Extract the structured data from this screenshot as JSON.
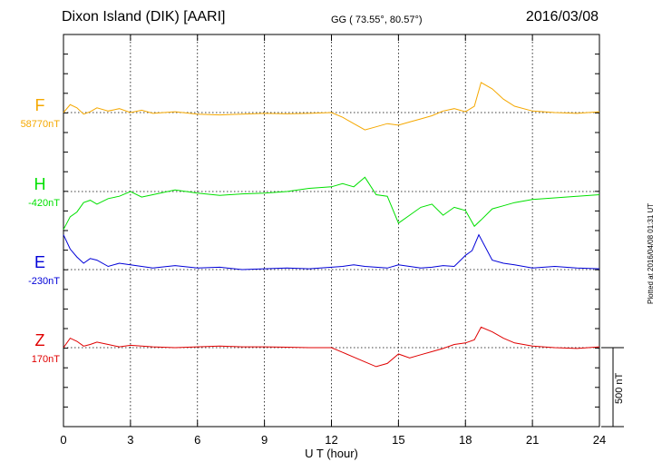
{
  "header": {
    "title": "Dixon Island (DIK)  [AARI]",
    "coords": "GG ( 73.55°,  80.57°)",
    "date": "2016/03/08"
  },
  "plotted_note": "Plotted at 2016/04/08 01:31  UT",
  "scale_label": "500 nT",
  "colors": {
    "F": "#f5a800",
    "H": "#00e000",
    "E": "#0000d8",
    "Z": "#e00000"
  },
  "chart_data": {
    "type": "line",
    "title": "Dixon Island (DIK)  [AARI]",
    "xlabel": "U T (hour)",
    "ylabel": "",
    "xlim": [
      0,
      24
    ],
    "x_ticks": [
      "0",
      "3",
      "6",
      "9",
      "12",
      "15",
      "18",
      "21",
      "24"
    ],
    "scale_nT": 500,
    "grid": true,
    "series": [
      {
        "name": "F",
        "baseline": "58770nT",
        "color": "#f5a800",
        "points": [
          [
            0,
            0
          ],
          [
            0.3,
            -50
          ],
          [
            0.6,
            -30
          ],
          [
            0.9,
            10
          ],
          [
            1.2,
            -5
          ],
          [
            1.5,
            -30
          ],
          [
            2,
            -10
          ],
          [
            2.5,
            -25
          ],
          [
            3,
            0
          ],
          [
            3.5,
            -15
          ],
          [
            4,
            5
          ],
          [
            5,
            -5
          ],
          [
            6,
            10
          ],
          [
            7,
            15
          ],
          [
            8,
            10
          ],
          [
            9,
            5
          ],
          [
            10,
            8
          ],
          [
            11,
            5
          ],
          [
            12,
            0
          ],
          [
            12.5,
            30
          ],
          [
            13,
            70
          ],
          [
            13.5,
            110
          ],
          [
            14,
            90
          ],
          [
            14.5,
            70
          ],
          [
            15,
            80
          ],
          [
            15.5,
            60
          ],
          [
            16,
            40
          ],
          [
            16.5,
            20
          ],
          [
            17,
            -10
          ],
          [
            17.5,
            -25
          ],
          [
            18,
            -5
          ],
          [
            18.4,
            -40
          ],
          [
            18.7,
            -190
          ],
          [
            19.2,
            -150
          ],
          [
            19.7,
            -85
          ],
          [
            20.2,
            -40
          ],
          [
            21,
            -10
          ],
          [
            22,
            0
          ],
          [
            23,
            5
          ],
          [
            24,
            -5
          ]
        ]
      },
      {
        "name": "H",
        "baseline": "-420nT",
        "color": "#00e000",
        "points": [
          [
            0,
            240
          ],
          [
            0.3,
            160
          ],
          [
            0.6,
            130
          ],
          [
            0.9,
            70
          ],
          [
            1.2,
            55
          ],
          [
            1.5,
            80
          ],
          [
            2,
            45
          ],
          [
            2.5,
            30
          ],
          [
            3,
            0
          ],
          [
            3.5,
            35
          ],
          [
            4,
            20
          ],
          [
            5,
            -10
          ],
          [
            6,
            10
          ],
          [
            7,
            25
          ],
          [
            8,
            15
          ],
          [
            9,
            10
          ],
          [
            10,
            0
          ],
          [
            11,
            -20
          ],
          [
            12,
            -30
          ],
          [
            12.5,
            -50
          ],
          [
            13,
            -30
          ],
          [
            13.5,
            -90
          ],
          [
            14,
            20
          ],
          [
            14.5,
            30
          ],
          [
            15,
            200
          ],
          [
            15.5,
            150
          ],
          [
            16,
            100
          ],
          [
            16.5,
            80
          ],
          [
            17,
            150
          ],
          [
            17.5,
            100
          ],
          [
            18,
            120
          ],
          [
            18.4,
            220
          ],
          [
            18.7,
            180
          ],
          [
            19.2,
            110
          ],
          [
            19.7,
            90
          ],
          [
            20.2,
            70
          ],
          [
            21,
            50
          ],
          [
            22,
            40
          ],
          [
            23,
            30
          ],
          [
            24,
            20
          ]
        ]
      },
      {
        "name": "E",
        "baseline": "-230nT",
        "color": "#0000d8",
        "points": [
          [
            0,
            -220
          ],
          [
            0.3,
            -130
          ],
          [
            0.6,
            -80
          ],
          [
            0.9,
            -40
          ],
          [
            1.2,
            -70
          ],
          [
            1.5,
            -60
          ],
          [
            2,
            -20
          ],
          [
            2.5,
            -40
          ],
          [
            3,
            -30
          ],
          [
            3.5,
            -20
          ],
          [
            4,
            -10
          ],
          [
            5,
            -25
          ],
          [
            6,
            -10
          ],
          [
            7,
            -15
          ],
          [
            8,
            0
          ],
          [
            9,
            -5
          ],
          [
            10,
            -10
          ],
          [
            11,
            -5
          ],
          [
            12,
            -15
          ],
          [
            12.5,
            -20
          ],
          [
            13,
            -30
          ],
          [
            13.5,
            -20
          ],
          [
            14,
            -15
          ],
          [
            14.5,
            -10
          ],
          [
            15,
            -30
          ],
          [
            15.5,
            -20
          ],
          [
            16,
            -10
          ],
          [
            16.5,
            -15
          ],
          [
            17,
            -25
          ],
          [
            17.5,
            -20
          ],
          [
            18,
            -90
          ],
          [
            18.3,
            -120
          ],
          [
            18.6,
            -220
          ],
          [
            19.2,
            -60
          ],
          [
            19.7,
            -40
          ],
          [
            20.2,
            -30
          ],
          [
            21,
            -10
          ],
          [
            22,
            -20
          ],
          [
            23,
            -10
          ],
          [
            24,
            -5
          ]
        ]
      },
      {
        "name": "Z",
        "baseline": "170nT",
        "color": "#e00000",
        "points": [
          [
            0,
            0
          ],
          [
            0.3,
            -60
          ],
          [
            0.6,
            -40
          ],
          [
            0.9,
            -10
          ],
          [
            1.2,
            -20
          ],
          [
            1.5,
            -35
          ],
          [
            2,
            -20
          ],
          [
            2.5,
            -5
          ],
          [
            3,
            -15
          ],
          [
            3.5,
            -10
          ],
          [
            4,
            -5
          ],
          [
            5,
            0
          ],
          [
            6,
            -5
          ],
          [
            7,
            -10
          ],
          [
            8,
            -5
          ],
          [
            9,
            -5
          ],
          [
            10,
            -3
          ],
          [
            11,
            0
          ],
          [
            12,
            0
          ],
          [
            12.5,
            30
          ],
          [
            13,
            60
          ],
          [
            13.5,
            90
          ],
          [
            14,
            120
          ],
          [
            14.5,
            100
          ],
          [
            15,
            40
          ],
          [
            15.5,
            65
          ],
          [
            16,
            45
          ],
          [
            16.5,
            25
          ],
          [
            17,
            5
          ],
          [
            17.5,
            -20
          ],
          [
            18,
            -30
          ],
          [
            18.4,
            -50
          ],
          [
            18.7,
            -130
          ],
          [
            19.2,
            -100
          ],
          [
            19.7,
            -60
          ],
          [
            20.2,
            -30
          ],
          [
            21,
            -10
          ],
          [
            22,
            0
          ],
          [
            23,
            5
          ],
          [
            24,
            -5
          ]
        ]
      }
    ]
  }
}
